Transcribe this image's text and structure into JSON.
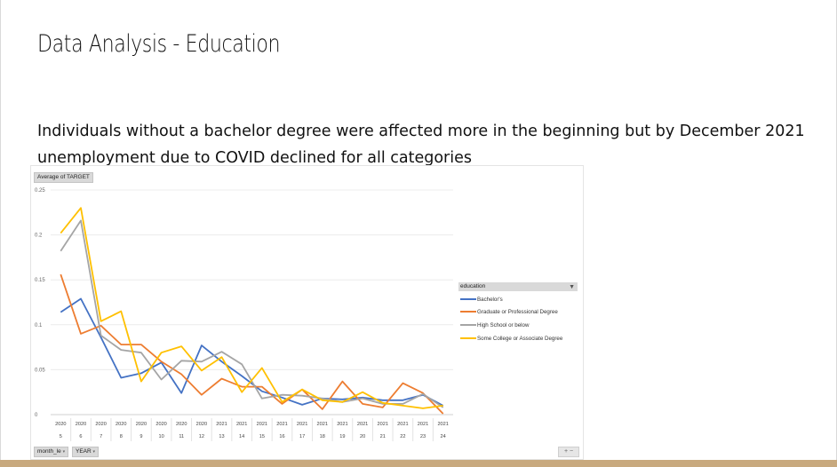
{
  "slide": {
    "title": "Data Analysis - Education",
    "body": "Individuals without a bachelor degree were affected more in the beginning but by December 2021 unemployment due to COVID declined for all categories"
  },
  "colors": {
    "bottom_bar": "#c8a97e"
  },
  "chart_data": {
    "type": "line",
    "y_field_label": "Average of TARGET",
    "row_fields": [
      "month_le",
      "YEAR"
    ],
    "legend_title": "education",
    "legend_position": "right",
    "grid": true,
    "ylim": [
      0,
      0.25
    ],
    "yticks": [
      "0.25",
      "0.2",
      "0.15",
      "0.1",
      "0.05",
      "0"
    ],
    "year_labels": [
      "2020",
      "2020",
      "2020",
      "2020",
      "2020",
      "2020",
      "2020",
      "2020",
      "2021",
      "2021",
      "2021",
      "2021",
      "2021",
      "2021",
      "2021",
      "2021",
      "2021",
      "2021",
      "2021",
      "2021"
    ],
    "month_labels": [
      "5",
      "6",
      "7",
      "8",
      "9",
      "10",
      "11",
      "12",
      "13",
      "14",
      "15",
      "16",
      "17",
      "18",
      "19",
      "20",
      "21",
      "22",
      "23",
      "24"
    ],
    "series": [
      {
        "name": "Bachelor's",
        "color": "#4472c4",
        "values": [
          0.114,
          0.129,
          0.086,
          0.041,
          0.046,
          0.058,
          0.024,
          0.077,
          0.059,
          0.043,
          0.026,
          0.019,
          0.011,
          0.018,
          0.017,
          0.019,
          0.016,
          0.016,
          0.022,
          0.01
        ]
      },
      {
        "name": "Graduate or Professional Degree",
        "color": "#ed7d31",
        "values": [
          0.156,
          0.09,
          0.099,
          0.078,
          0.078,
          0.059,
          0.045,
          0.022,
          0.04,
          0.031,
          0.031,
          0.012,
          0.028,
          0.006,
          0.037,
          0.012,
          0.008,
          0.035,
          0.024,
          0.001
        ]
      },
      {
        "name": "High School or below",
        "color": "#a5a5a5",
        "values": [
          0.182,
          0.216,
          0.088,
          0.072,
          0.069,
          0.039,
          0.06,
          0.059,
          0.07,
          0.056,
          0.018,
          0.022,
          0.021,
          0.018,
          0.014,
          0.018,
          0.012,
          0.012,
          0.023,
          0.008
        ]
      },
      {
        "name": "Some College or Associate Degree",
        "color": "#ffc000",
        "values": [
          0.202,
          0.23,
          0.104,
          0.115,
          0.037,
          0.069,
          0.076,
          0.049,
          0.064,
          0.025,
          0.052,
          0.014,
          0.028,
          0.016,
          0.014,
          0.025,
          0.013,
          0.01,
          0.007,
          0.01
        ]
      }
    ]
  }
}
